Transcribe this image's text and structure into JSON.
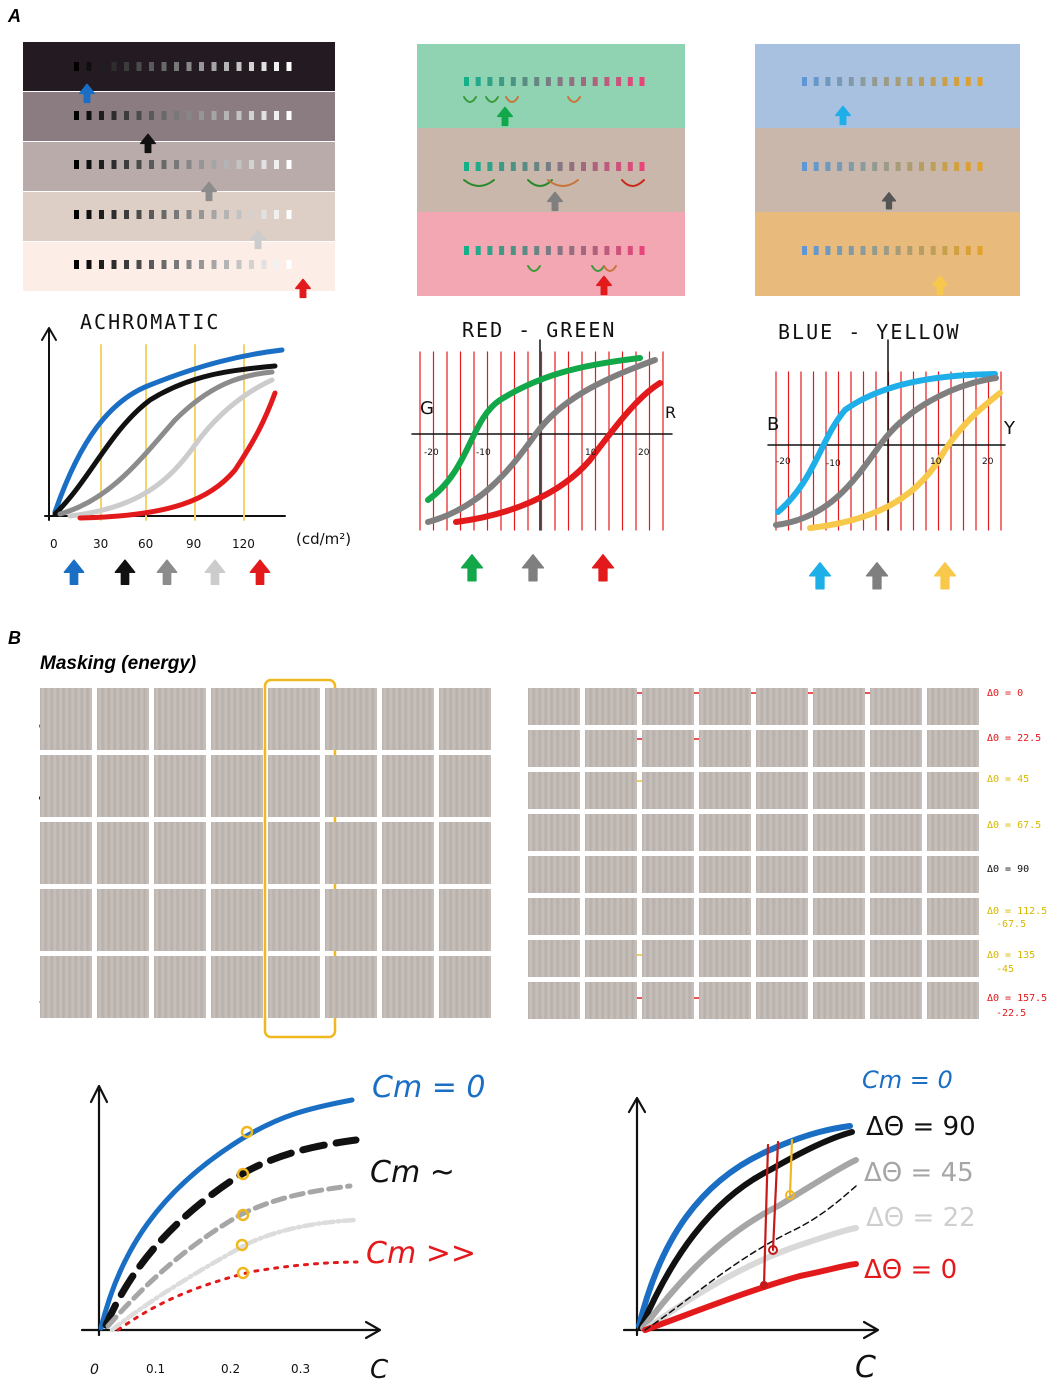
{
  "panels": {
    "a_label": "A",
    "b_label": "B"
  },
  "panel_a": {
    "achromatic": {
      "title": "ACHROMATIC",
      "strip_colors": [
        "#231b21",
        "#8a7c80",
        "#b8aba9",
        "#ddcfc5",
        "#fcede6"
      ],
      "x_ticks": [
        "0",
        "30",
        "60",
        "90",
        "120"
      ],
      "unit": "(cd/m²)",
      "arrow_colors": [
        "#1a6fc4",
        "#111111",
        "#8c8c8c",
        "#cccccc",
        "#e31a1c"
      ]
    },
    "red_green": {
      "title": "RED - GREEN",
      "strip_colors": [
        "#8fd3b3",
        "#c9b7ab",
        "#f2a7b3"
      ],
      "left_label": "G",
      "right_label": "R",
      "x_ticks": [
        "-20",
        "-10",
        "10",
        "20"
      ],
      "arrow_colors": [
        "#12a84a",
        "#7f7f7f",
        "#e31a1c"
      ]
    },
    "blue_yellow": {
      "title": "BLUE - YELLOW",
      "strip_colors": [
        "#a9c1e0",
        "#c9b7ab",
        "#e8bb7c"
      ],
      "left_label": "B",
      "right_label": "Y",
      "x_ticks": [
        "-20",
        "-10",
        "10",
        "20"
      ],
      "arrow_colors": [
        "#1eaee8",
        "#7f7f7f",
        "#f7c84a"
      ]
    }
  },
  "panel_b": {
    "masking_title": "Masking (energy)",
    "orientation_labels": [
      {
        "text": "ΔΘ = 0",
        "color": "#e31a1c"
      },
      {
        "text": "ΔΘ = 22.5",
        "color": "#e31a1c"
      },
      {
        "text": "ΔΘ = 45",
        "color": "#e0c020"
      },
      {
        "text": "ΔΘ = 67.5",
        "color": "#e0c020"
      },
      {
        "text": "ΔΘ = 90",
        "color": "#111111"
      },
      {
        "text": "ΔΘ = 112.5",
        "color": "#e0c020"
      },
      {
        "text": "-67.5",
        "color": "#e0c020"
      },
      {
        "text": "ΔΘ = 135",
        "color": "#e0c020"
      },
      {
        "text": "-45",
        "color": "#e0c020"
      },
      {
        "text": "ΔΘ = 157.5",
        "color": "#e31a1c"
      },
      {
        "text": "-22.5",
        "color": "#e31a1c"
      }
    ],
    "left_plot": {
      "curve_labels": [
        "Cm = 0",
        "Cm ~",
        "Cm >>"
      ],
      "x_ticks": [
        "0",
        "0.1",
        "0.2",
        "0.3"
      ],
      "x_axis_label": "C"
    },
    "right_plot": {
      "curve_labels": [
        "Cm = 0",
        "ΔΘ = 90",
        "ΔΘ = 45",
        "ΔΘ = 22",
        "ΔΘ = 0"
      ],
      "x_axis_label": "C"
    }
  }
}
